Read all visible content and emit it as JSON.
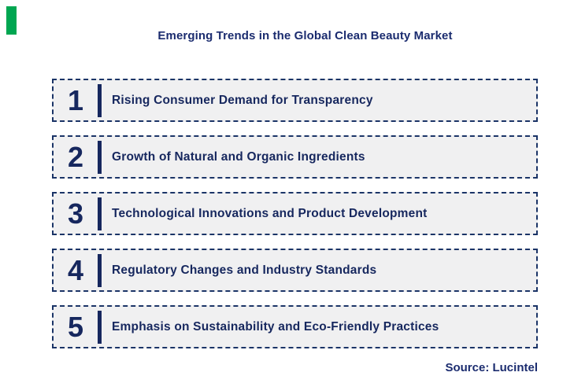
{
  "title": "Emerging Trends in the Global Clean Beauty Market",
  "trends": [
    {
      "number": "1",
      "label": "Rising Consumer Demand for Transparency"
    },
    {
      "number": "2",
      "label": "Growth of Natural and Organic Ingredients"
    },
    {
      "number": "3",
      "label": "Technological Innovations and Product Development"
    },
    {
      "number": "4",
      "label": "Regulatory Changes and Industry Standards"
    },
    {
      "number": "5",
      "label": "Emphasis on Sustainability and Eco-Friendly Practices"
    }
  ],
  "source": "Source: Lucintel",
  "colors": {
    "title_navy": "#1B2C6F",
    "item_navy": "#16275E",
    "box_fill": "#F0F0F1",
    "box_border": "#1B3467",
    "accent_green": "#00A651"
  }
}
